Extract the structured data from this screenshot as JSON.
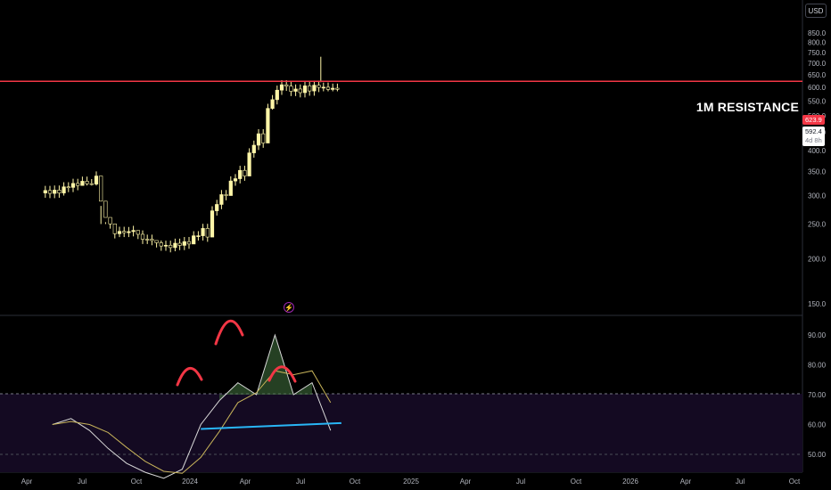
{
  "currency_button": "USD",
  "resistance_label": "1M RESISTANCE",
  "resistance_price": "623.9",
  "last_price": "592.4",
  "countdown": "4d 8h",
  "price_axis_ticks": [
    "850.0",
    "800.0",
    "750.0",
    "700.0",
    "650.0",
    "600.0",
    "550.0",
    "500.0",
    "450.0",
    "400.0",
    "350.0",
    "300.0",
    "250.0",
    "200.0",
    "150.0"
  ],
  "rsi_axis_ticks": [
    "90.00",
    "80.00",
    "70.00",
    "60.00",
    "50.00"
  ],
  "time_axis_ticks": [
    "Apr",
    "Jul",
    "Oct",
    "2024",
    "Apr",
    "Jul",
    "Oct",
    "2025",
    "Apr",
    "Jul",
    "Oct",
    "2026",
    "Apr",
    "Jul",
    "Oct"
  ],
  "colors": {
    "background": "#000000",
    "candle": "#fff6a8",
    "resistance_line": "#f23645",
    "rsi_line": "#d9d9d9",
    "rsi_ma": "#c8b45a",
    "trendline": "#29b6f6",
    "pattern_arcs": "#f23645",
    "overbought_fill": "#1b0f2a"
  },
  "chart_data": [
    {
      "type": "candlestick",
      "title": "",
      "price_scale": "log",
      "ylim": [
        140,
        900
      ],
      "resistance_level": 623.9,
      "last_price": 592.4,
      "series": [
        {
          "name": "",
          "x": [
            "2023-03",
            "2023-04",
            "2023-05",
            "2023-06",
            "2023-07",
            "2023-08",
            "2023-09",
            "2023-10",
            "2023-11",
            "2023-12",
            "2024-01",
            "2024-02",
            "2024-03",
            "2024-04",
            "2024-05",
            "2024-06"
          ],
          "close": [
            305,
            320,
            340,
            235,
            240,
            225,
            215,
            220,
            230,
            300,
            340,
            420,
            610,
            580,
            600,
            592.4
          ],
          "high": [
            330,
            350,
            355,
            250,
            250,
            240,
            225,
            250,
            275,
            330,
            380,
            470,
            650,
            630,
            730,
            640
          ],
          "low": [
            275,
            300,
            320,
            228,
            230,
            215,
            205,
            210,
            222,
            260,
            300,
            380,
            520,
            520,
            530,
            585
          ]
        }
      ]
    },
    {
      "type": "line",
      "title": "",
      "ylim": [
        45,
        95
      ],
      "levels": [
        70,
        50
      ],
      "series": [
        {
          "name": "",
          "x": [
            "2023-03",
            "2023-04",
            "2023-05",
            "2023-06",
            "2023-07",
            "2023-08",
            "2023-09",
            "2023-10",
            "2023-11",
            "2023-12",
            "2024-01",
            "2024-02",
            "2024-03",
            "2024-04",
            "2024-05",
            "2024-06"
          ],
          "values": [
            60,
            62,
            58,
            52,
            47,
            44,
            42,
            45,
            60,
            68,
            74,
            70,
            90,
            70,
            74,
            58
          ]
        }
      ],
      "trendline": {
        "from": [
          "2023-11",
          58.5
        ],
        "to": [
          "2024-06",
          60.5
        ]
      },
      "annotation": "head and shoulders arcs over RSI peaks"
    }
  ]
}
